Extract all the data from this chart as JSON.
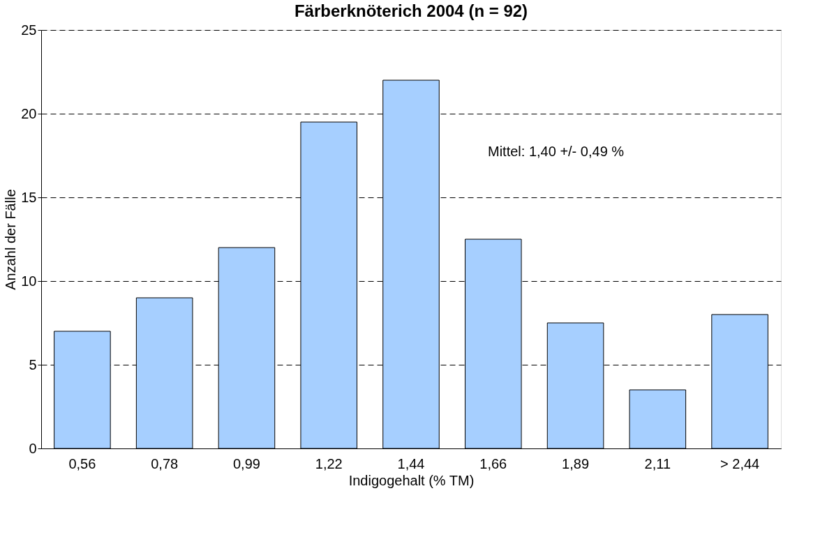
{
  "chart_data": {
    "type": "bar",
    "title": "Färberknöterich 2004 (n = 92)",
    "xlabel": "Indigogehalt (% TM)",
    "ylabel": "Anzahl der Fälle",
    "categories": [
      "0,56",
      "0,78",
      "0,99",
      "1,22",
      "1,44",
      "1,66",
      "1,89",
      "2,11",
      "> 2,44"
    ],
    "values": [
      7,
      9,
      12,
      19.5,
      22,
      12.5,
      7.5,
      3.5,
      8
    ],
    "color": "#a6cfff",
    "ylim": [
      0,
      25
    ],
    "yticks": [
      0,
      5,
      10,
      15,
      20,
      25
    ],
    "grid": "y",
    "line_style": "dashed",
    "annotations": [
      "Mittel: 1,40 +/- 0,49 %"
    ]
  }
}
